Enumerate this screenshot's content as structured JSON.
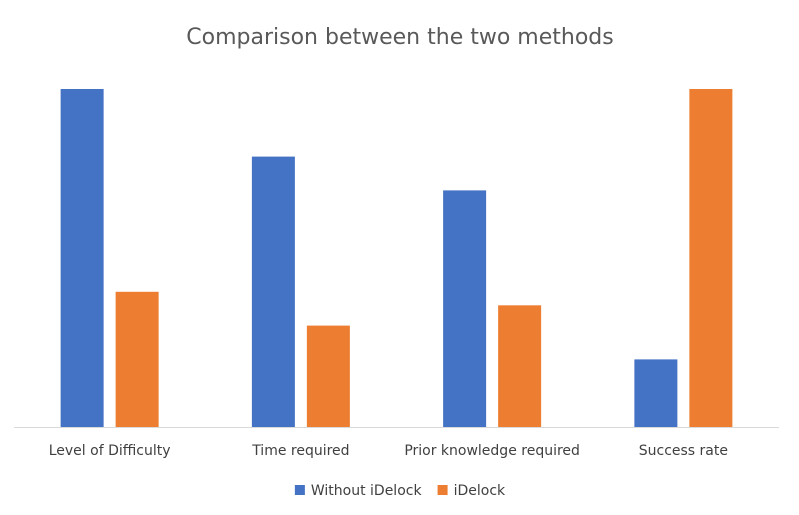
{
  "chart_data": {
    "type": "bar",
    "title": "Comparison between the two methods",
    "categories": [
      "Level of Difficulty",
      "Time required",
      "Prior knowledge required",
      "Success rate"
    ],
    "series": [
      {
        "name": "Without iDelock",
        "values": [
          10,
          8,
          7,
          2
        ],
        "color": "#4472C4"
      },
      {
        "name": "iDelock",
        "values": [
          4,
          3,
          3.6,
          10
        ],
        "color": "#ED7D31"
      }
    ],
    "ylim": [
      0,
      10
    ],
    "grid": false,
    "legend": "bottom-center",
    "xlabel": "",
    "ylabel": ""
  }
}
